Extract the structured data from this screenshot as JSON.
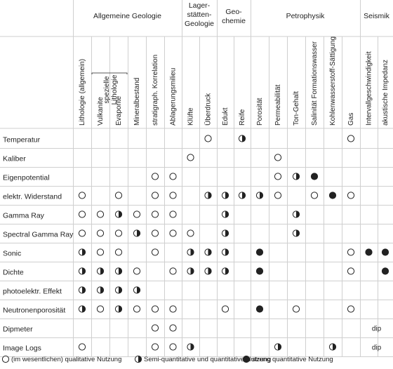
{
  "groups": [
    {
      "label": [
        "Allgemeine Geologie"
      ]
    },
    {
      "label": [
        "Lager-",
        "stätten-",
        "Geologie"
      ]
    },
    {
      "label": [
        "Geo-",
        "chemie"
      ]
    },
    {
      "label": [
        "Petrophysik"
      ]
    },
    {
      "label": [
        "Seismik"
      ]
    }
  ],
  "columns": [
    "Lithologie (allgemein)",
    "Vulkanite",
    "Evaporite",
    "Mineralbestand",
    "stratigraph. Korrelation",
    "Ablagerungsmilieu",
    "Klüfte",
    "Überdruck",
    "Edukt",
    "Reife",
    "Porosität",
    "Permeabilität",
    "Ton-Gehalt",
    "Salinität Formationswasser",
    "Kohlenwasserstoff-Sättigung",
    "Gas",
    "Intervallgeschwindigkeit",
    "akustische Impedanz"
  ],
  "bracket_label": [
    "spezielle",
    "Lithologie"
  ],
  "rows": [
    {
      "label": "Temperatur",
      "cells": [
        "",
        "",
        "",
        "",
        "",
        "",
        "",
        "o",
        "",
        "h",
        "",
        "",
        "",
        "",
        "",
        "o",
        "",
        ""
      ]
    },
    {
      "label": "Kaliber",
      "cells": [
        "",
        "",
        "",
        "",
        "",
        "",
        "o",
        "",
        "",
        "",
        "",
        "o",
        "",
        "",
        "",
        "",
        "",
        ""
      ]
    },
    {
      "label": "Eigenpotential",
      "cells": [
        "",
        "",
        "",
        "",
        "o",
        "o",
        "",
        "",
        "",
        "",
        "",
        "o",
        "h",
        "f",
        "",
        "",
        "",
        ""
      ]
    },
    {
      "label": "elektr. Widerstand",
      "cells": [
        "o",
        "",
        "o",
        "",
        "o",
        "o",
        "",
        "h",
        "h",
        "h",
        "h",
        "o",
        "",
        "o",
        "f",
        "o",
        "",
        ""
      ]
    },
    {
      "label": "Gamma Ray",
      "cells": [
        "o",
        "o",
        "h",
        "o",
        "o",
        "o",
        "",
        "",
        "h",
        "",
        "",
        "",
        "h",
        "",
        "",
        "",
        "",
        ""
      ]
    },
    {
      "label": "Spectral Gamma Ray",
      "cells": [
        "o",
        "o",
        "o",
        "h",
        "o",
        "o",
        "o",
        "",
        "h",
        "",
        "",
        "",
        "h",
        "",
        "",
        "",
        "",
        ""
      ]
    },
    {
      "label": "Sonic",
      "cells": [
        "h",
        "o",
        "o",
        "",
        "o",
        "",
        "h",
        "h",
        "h",
        "",
        "f",
        "",
        "",
        "",
        "",
        "o",
        "f",
        "f"
      ]
    },
    {
      "label": "Dichte",
      "cells": [
        "h",
        "h",
        "h",
        "o",
        "",
        "o",
        "h",
        "h",
        "h",
        "",
        "f",
        "",
        "",
        "",
        "",
        "o",
        "",
        "f"
      ]
    },
    {
      "label": "photoelektr. Effekt",
      "cells": [
        "h",
        "h",
        "h",
        "h",
        "",
        "",
        "",
        "",
        "",
        "",
        "",
        "",
        "",
        "",
        "",
        "",
        "",
        ""
      ]
    },
    {
      "label": "Neutronenporosität",
      "cells": [
        "h",
        "o",
        "h",
        "o",
        "o",
        "o",
        "",
        "",
        "o",
        "",
        "f",
        "",
        "o",
        "",
        "",
        "o",
        "",
        ""
      ]
    },
    {
      "label": "Dipmeter",
      "cells": [
        "",
        "",
        "",
        "",
        "o",
        "o",
        "",
        "",
        "",
        "",
        "",
        "",
        "",
        "",
        "",
        "",
        "dip",
        ""
      ]
    },
    {
      "label": "Image Logs",
      "cells": [
        "o",
        "",
        "",
        "",
        "o",
        "o",
        "h",
        "",
        "",
        "",
        "",
        "h",
        "",
        "",
        "h",
        "",
        "dip",
        ""
      ]
    }
  ],
  "legend": [
    {
      "symbol": "open",
      "text": "(im wesentlichen) qualitative Nutzung"
    },
    {
      "symbol": "half",
      "text": "Semi-quantitative und quantitative Nutzung"
    },
    {
      "symbol": "filled",
      "text": "streng quantitative Nutzung"
    }
  ],
  "colors": {
    "grid": "#cfcfcf",
    "ink": "#222222",
    "background": "#ffffff"
  }
}
